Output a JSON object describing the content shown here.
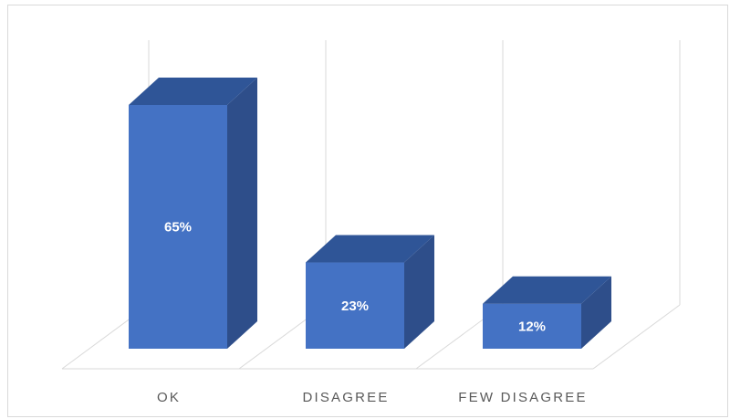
{
  "chart_data": {
    "type": "bar",
    "style": "3d-column",
    "categories": [
      "OK",
      "DISAGREE",
      "FEW DISAGREE"
    ],
    "values": [
      65,
      23,
      12
    ],
    "data_labels": [
      "65%",
      "23%",
      "12%"
    ],
    "ylim": [
      0,
      65
    ],
    "grid": true,
    "legend": "none",
    "colors": {
      "front": "#4472c4",
      "side": "#2e4e8a",
      "top": "#2f5597",
      "edge": "#2f528f",
      "grid": "#d9d9d9",
      "label": "#595959"
    }
  }
}
